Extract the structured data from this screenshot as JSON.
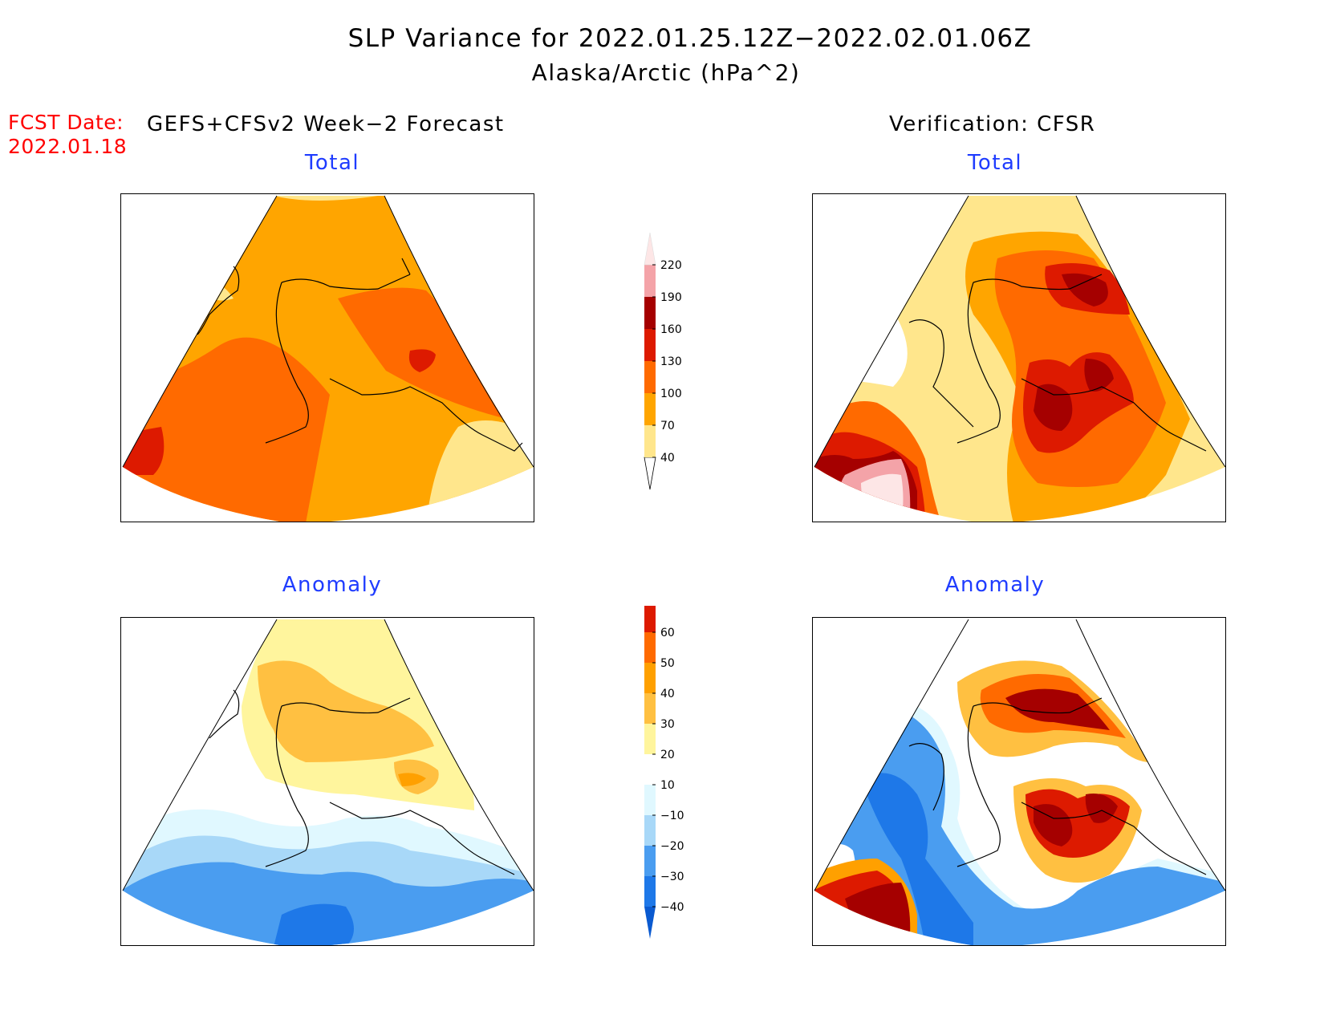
{
  "title": {
    "line1": "SLP Variance for 2022.01.25.12Z−2022.02.01.06Z",
    "line2": "Alaska/Arctic (hPa^2)"
  },
  "forecast_date": {
    "label": "FCST Date:",
    "value": "2022.01.18"
  },
  "left_header": "GEFS+CFSv2 Week−2 Forecast",
  "right_header": "Verification: CFSR",
  "panels": {
    "top_left": {
      "title": "Total"
    },
    "top_right": {
      "title": "Total"
    },
    "bottom_left": {
      "title": "Anomaly"
    },
    "bottom_right": {
      "title": "Anomaly"
    }
  },
  "colors": {
    "total": [
      "#ffffff",
      "#ffe68c",
      "#ffa500",
      "#ff6a00",
      "#dd1a00",
      "#a50000",
      "#f4a3a8",
      "#fde6e6"
    ],
    "anomaly_pos": [
      "#ffffff",
      "#fff59d",
      "#ffc041",
      "#ffa000",
      "#ff6a00",
      "#dd1a00",
      "#a50000"
    ],
    "anomaly_neg": [
      "#ffffff",
      "#e0f8ff",
      "#a8d8f8",
      "#4a9df0",
      "#1e78e8",
      "#0a5ad0"
    ],
    "title_blue": "#1f3cff",
    "fcst_red": "#ff0000"
  },
  "colorbars": {
    "total": {
      "ticks": [
        "40",
        "70",
        "100",
        "130",
        "160",
        "190",
        "220"
      ]
    },
    "anomaly": {
      "ticks": [
        "−40",
        "−30",
        "−20",
        "−10",
        "10",
        "20",
        "30",
        "40",
        "50",
        "60"
      ]
    }
  }
}
